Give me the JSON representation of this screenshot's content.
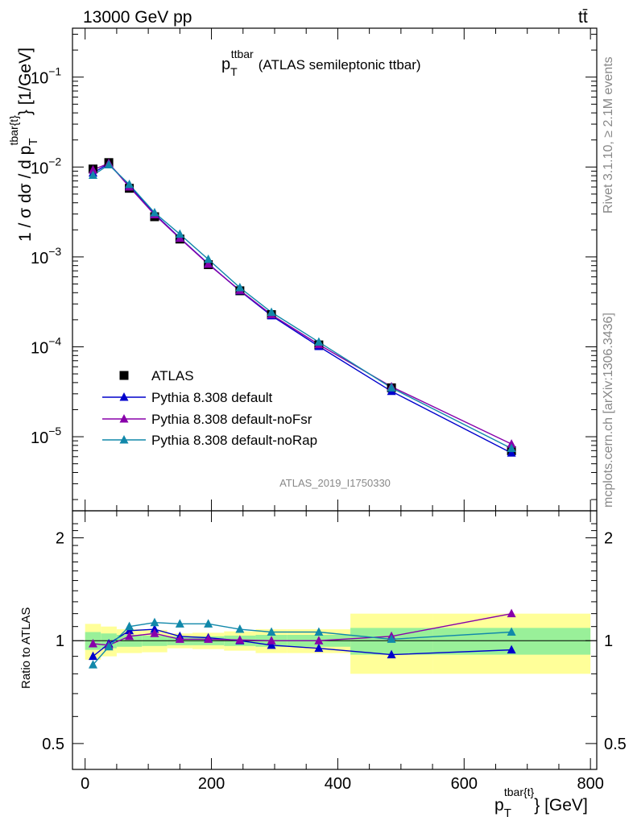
{
  "header": {
    "left": "13000 GeV pp",
    "right": "tt̄"
  },
  "plot_title": {
    "main": "p",
    "sub": "T",
    "sup": "ttbar",
    "rest": "(ATLAS semileptonic ttbar)"
  },
  "side_labels": {
    "rivet": "Rivet 3.1.10, ≥ 2.1M events",
    "mcplots": "mcplots.cern.ch [arXiv:1306.3436]"
  },
  "watermark": "ATLAS_2019_I1750330",
  "y_label_main": {
    "prefix": "1 / σ dσ / d p",
    "sub": "T",
    "sup": "tbar{t}",
    "suffix": "} [1/GeV]"
  },
  "y_label_ratio": "Ratio to ATLAS",
  "x_label": {
    "main": "p",
    "sub": "T",
    "sup": "tbar{t}",
    "suffix": "} [GeV]"
  },
  "colors": {
    "data": "#000000",
    "default": "#0000cc",
    "noFsr": "#8800aa",
    "noRap": "#1188aa",
    "band_inner": "#99f099",
    "band_outer": "#ffff99"
  },
  "chart_data": [
    {
      "type": "line",
      "panel": "main",
      "y_scale": "log",
      "xlim": [
        -20,
        810
      ],
      "ylim": [
        1.5e-06,
        0.35
      ],
      "x_ticks": [
        0,
        200,
        400,
        600,
        800
      ],
      "y_ticks": [
        {
          "value": 0.1,
          "base": "10",
          "exp": "−1"
        },
        {
          "value": 0.01,
          "base": "10",
          "exp": "−2"
        },
        {
          "value": 0.001,
          "base": "10",
          "exp": "−3"
        },
        {
          "value": 0.0001,
          "base": "10",
          "exp": "−4"
        },
        {
          "value": 1e-05,
          "base": "10",
          "exp": "−5"
        }
      ],
      "x": [
        12.5,
        37.5,
        70,
        110,
        150,
        195,
        245,
        295,
        370,
        485,
        675
      ],
      "series": [
        {
          "name": "ATLAS",
          "key": "data",
          "marker": "square",
          "values": [
            0.0095,
            0.0112,
            0.0058,
            0.0028,
            0.00158,
            0.00082,
            0.00042,
            0.000228,
            0.000105,
            3.5e-05,
            7e-06
          ]
        },
        {
          "name": "Pythia 8.308 default",
          "key": "default",
          "marker": "triangle",
          "values": [
            0.0086,
            0.0109,
            0.0062,
            0.003,
            0.00163,
            0.00084,
            0.00042,
            0.000222,
            0.000101,
            3.2e-05,
            6.6e-06
          ]
        },
        {
          "name": "Pythia 8.308 default-noFsr",
          "key": "noFsr",
          "marker": "triangle",
          "values": [
            0.0093,
            0.011,
            0.006,
            0.00295,
            0.00161,
            0.00083,
            0.000425,
            0.000228,
            0.000106,
            3.6e-05,
            8.3e-06
          ]
        },
        {
          "name": "Pythia 8.308 default-noRap",
          "key": "noRap",
          "marker": "triangle",
          "values": [
            0.0081,
            0.0106,
            0.0064,
            0.0031,
            0.00179,
            0.00094,
            0.000455,
            0.000242,
            0.000113,
            3.5e-05,
            7.4e-06
          ]
        }
      ]
    },
    {
      "type": "line",
      "panel": "ratio",
      "ylabel": "Ratio to ATLAS",
      "y_scale": "log",
      "xlim": [
        -20,
        810
      ],
      "ylim": [
        0.42,
        2.4
      ],
      "x_ticks": [
        0,
        200,
        400,
        600,
        800
      ],
      "y_ticks": [
        0.5,
        1,
        2
      ],
      "x": [
        12.5,
        37.5,
        70,
        110,
        150,
        195,
        245,
        295,
        370,
        485,
        675
      ],
      "bins": [
        0,
        25,
        50,
        90,
        130,
        170,
        220,
        270,
        320,
        420,
        550,
        800
      ],
      "band_inner": [
        0.06,
        0.05,
        0.04,
        0.035,
        0.03,
        0.03,
        0.035,
        0.04,
        0.04,
        0.09,
        0.09
      ],
      "band_outer": [
        0.12,
        0.1,
        0.08,
        0.075,
        0.05,
        0.055,
        0.065,
        0.08,
        0.08,
        0.2,
        0.2
      ],
      "series": [
        {
          "name": "Pythia 8.308 default",
          "key": "default",
          "values": [
            0.9,
            0.98,
            1.07,
            1.08,
            1.03,
            1.02,
            1.0,
            0.97,
            0.95,
            0.91,
            0.94
          ]
        },
        {
          "name": "Pythia 8.308 default-noFsr",
          "key": "noFsr",
          "values": [
            0.98,
            0.97,
            1.03,
            1.05,
            1.01,
            1.01,
            1.005,
            1.0,
            1.0,
            1.03,
            1.2
          ]
        },
        {
          "name": "Pythia 8.308 default-noRap",
          "key": "noRap",
          "values": [
            0.85,
            0.96,
            1.1,
            1.13,
            1.12,
            1.12,
            1.08,
            1.06,
            1.06,
            1.01,
            1.06
          ]
        }
      ]
    }
  ]
}
